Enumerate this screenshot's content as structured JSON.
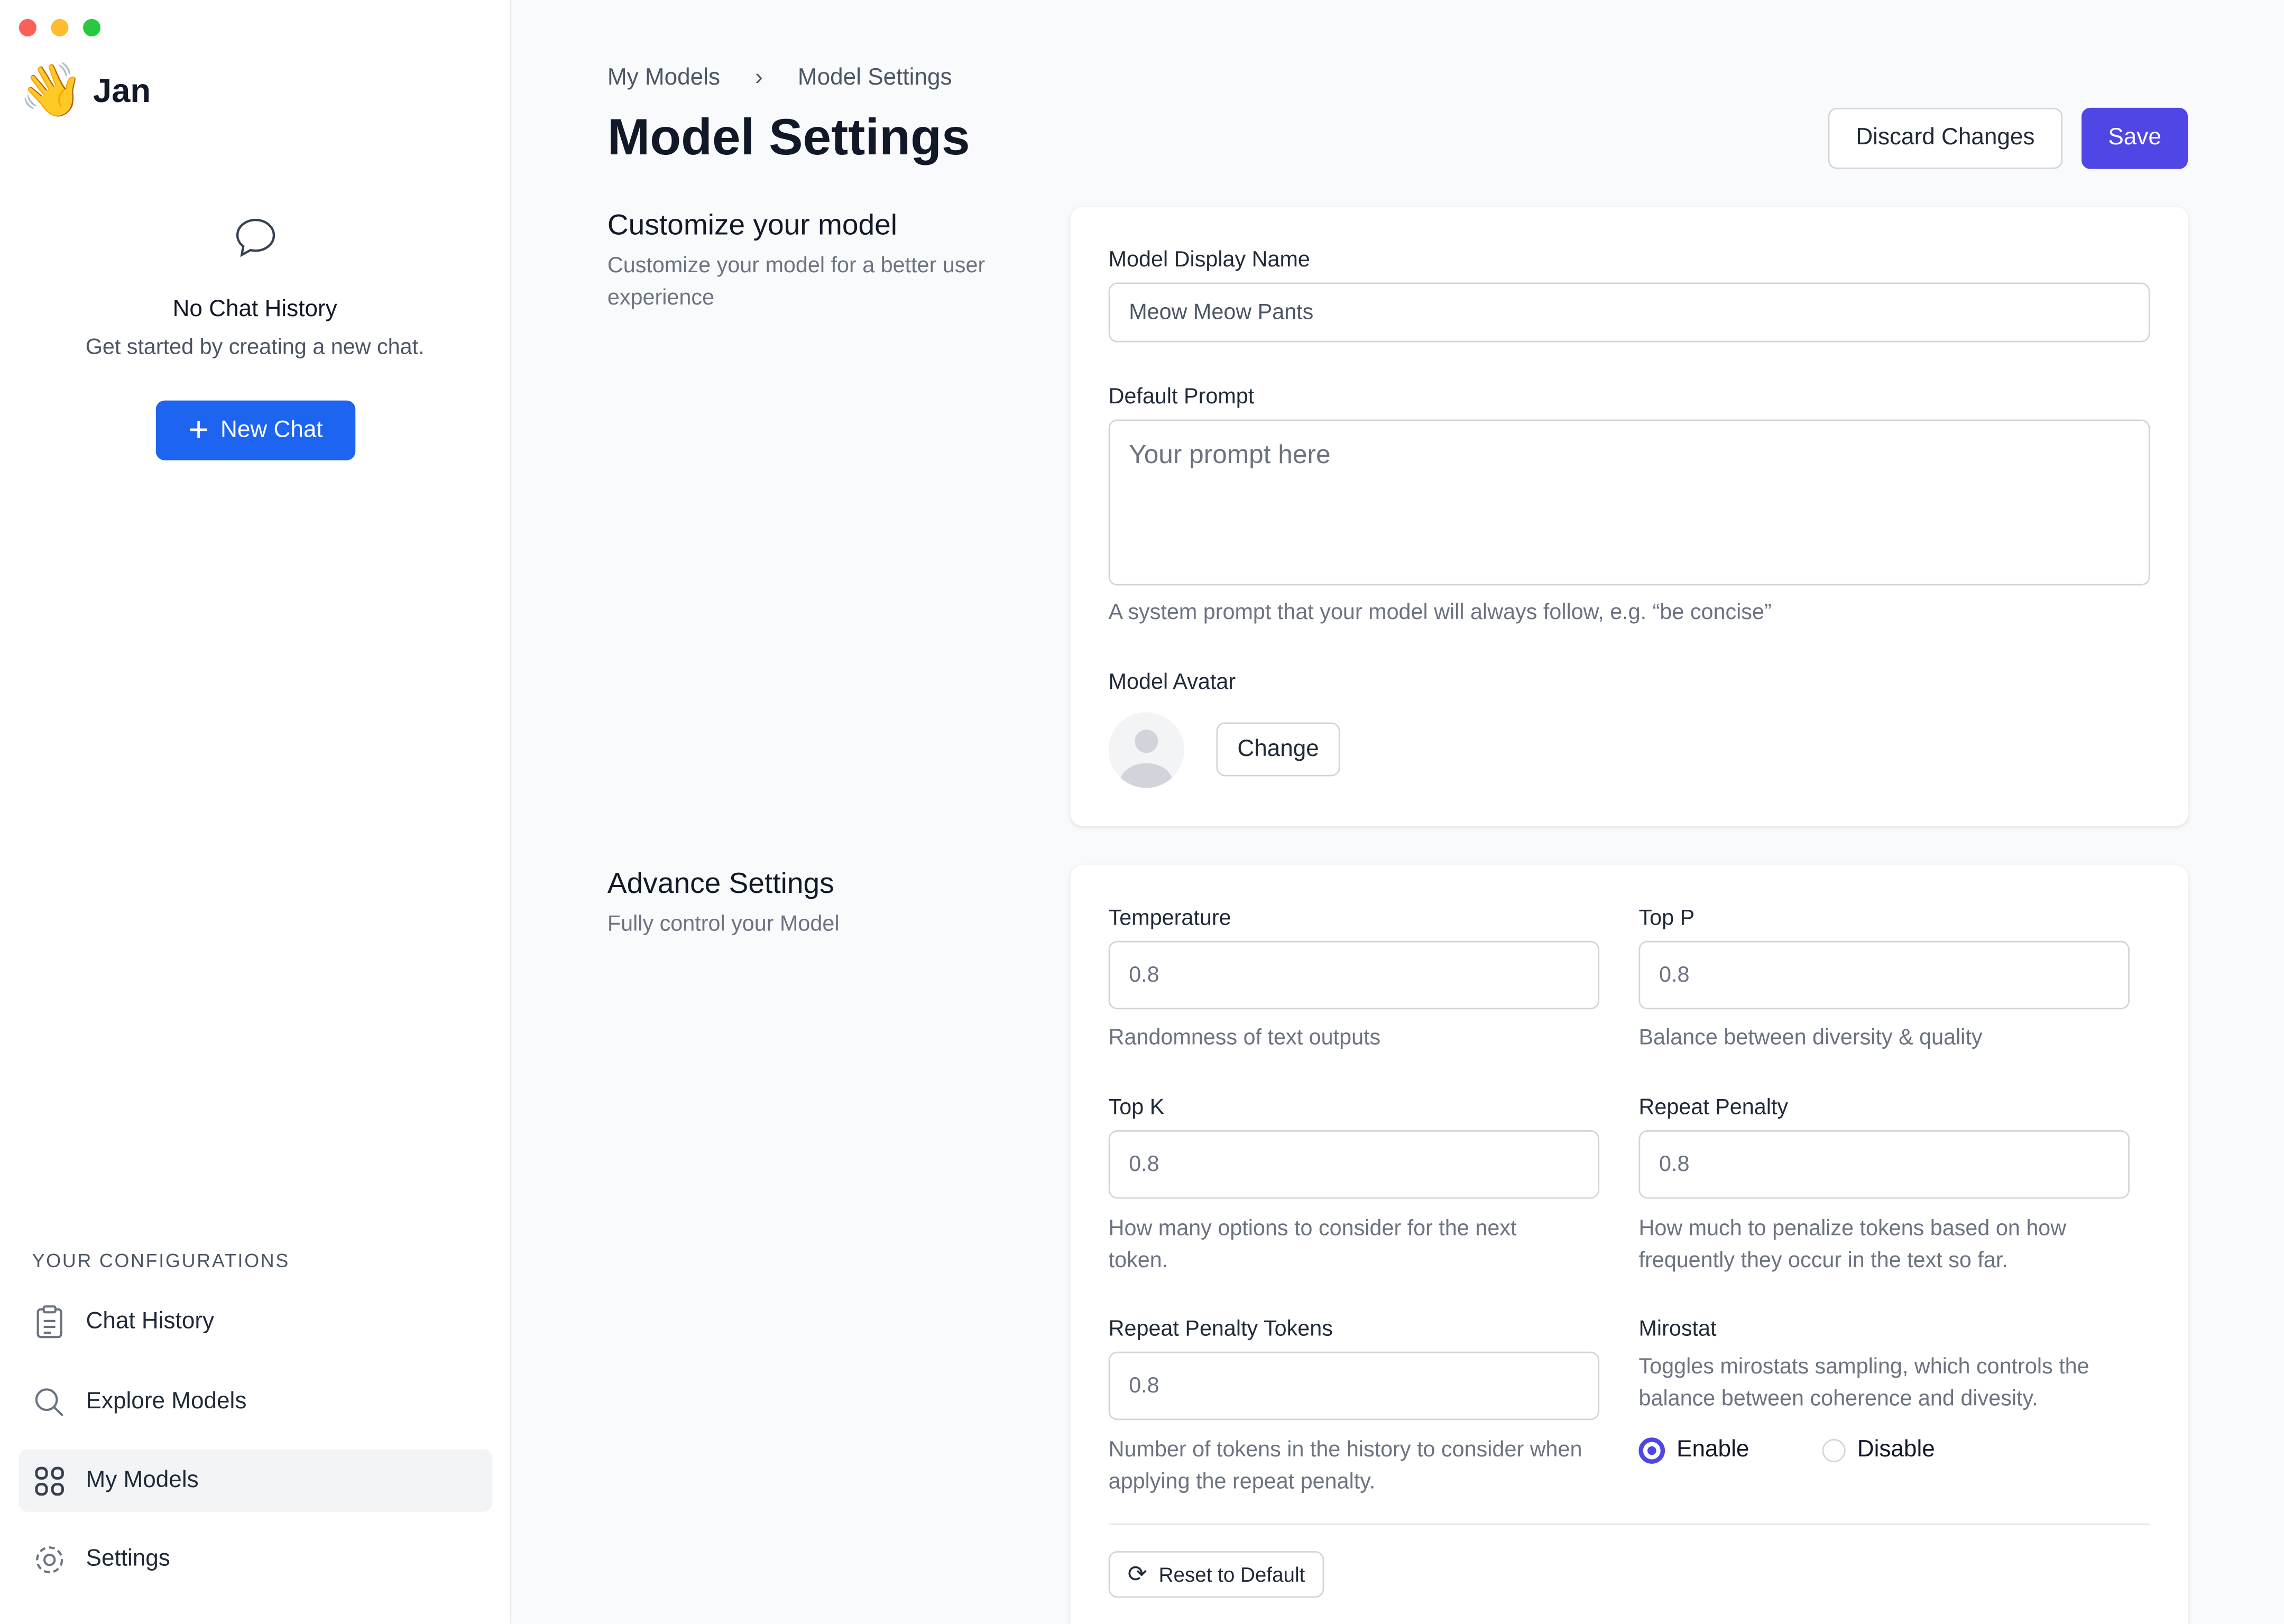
{
  "app": {
    "name": "Jan",
    "logo_emoji": "👋"
  },
  "sidebar": {
    "empty_title": "No Chat History",
    "empty_subtitle": "Get started by creating a new chat.",
    "new_chat": "New Chat",
    "section": "YOUR CONFIGURATIONS",
    "items": [
      {
        "label": "Chat History",
        "icon": "clipboard-icon"
      },
      {
        "label": "Explore Models",
        "icon": "search-icon"
      },
      {
        "label": "My Models",
        "icon": "grid-icon",
        "active": true
      },
      {
        "label": "Settings",
        "icon": "gear-icon"
      }
    ]
  },
  "breadcrumb": [
    "My Models",
    "Model Settings"
  ],
  "header": {
    "title": "Model Settings",
    "discard": "Discard Changes",
    "save": "Save"
  },
  "customize": {
    "title": "Customize your model",
    "subtitle": "Customize your model for a better user experience",
    "display_name_label": "Model Display Name",
    "display_name_value": "Meow Meow Pants",
    "prompt_label": "Default Prompt",
    "prompt_placeholder": "Your prompt here",
    "prompt_hint": "A system prompt that your model will always follow, e.g. “be concise”",
    "avatar_label": "Model Avatar",
    "change": "Change"
  },
  "advanced": {
    "title": "Advance Settings",
    "subtitle": "Fully control your Model",
    "temperature": {
      "label": "Temperature",
      "value": "0.8",
      "hint": "Randomness of text outputs"
    },
    "top_p": {
      "label": "Top P",
      "value": "0.8",
      "hint": "Balance between diversity & quality"
    },
    "top_k": {
      "label": "Top K",
      "value": "0.8",
      "hint": "How many options to consider for the next token."
    },
    "repeat_penalty": {
      "label": "Repeat Penalty",
      "value": "0.8",
      "hint": "How much to penalize tokens based on how frequently they occur in the text so far."
    },
    "repeat_tokens": {
      "label": "Repeat Penalty Tokens",
      "value": "0.8",
      "hint": "Number of tokens in the history to consider when applying the repeat penalty."
    },
    "mirostat": {
      "label": "Mirostat",
      "hint": "Toggles mirostats sampling, which controls the balance between coherence and divesity.",
      "enable": "Enable",
      "disable": "Disable",
      "selected": "Enable"
    },
    "reset": "Reset to Default"
  },
  "colors": {
    "primary": "#4f46e5",
    "new_chat": "#1d64f0"
  }
}
